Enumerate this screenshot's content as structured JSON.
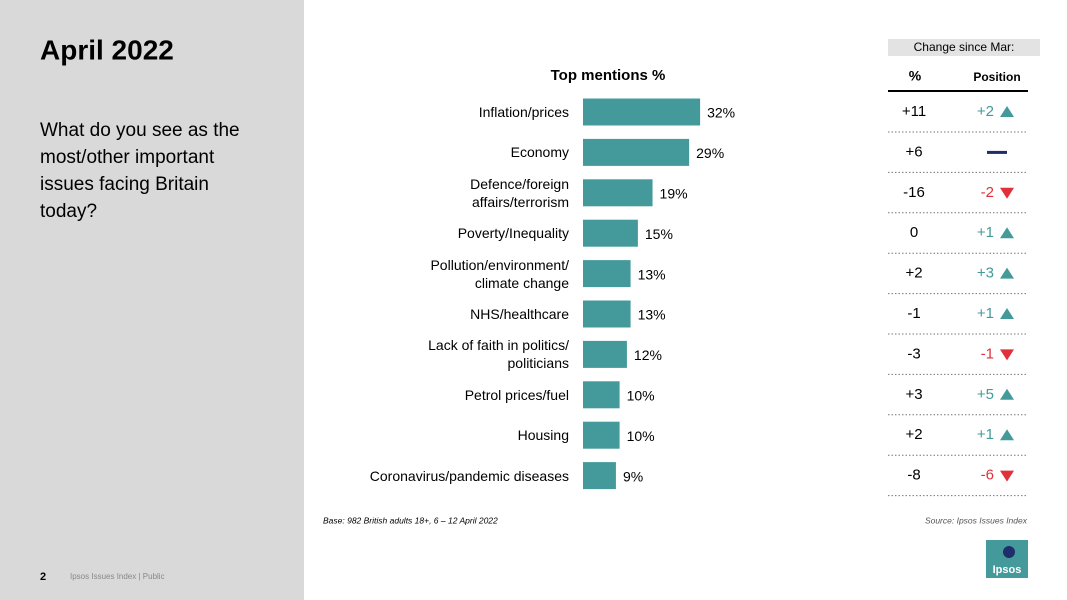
{
  "slide": {
    "title": "April 2022",
    "question": "What do you see as the most/other important issues facing Britain today?",
    "page_number": "2",
    "footer": "Ipsos Issues Index | Public",
    "base": "Base: 982 British adults 18+, 6 – 12 April 2022",
    "source": "Source: Ipsos Issues Index",
    "logo": "Ipsos"
  },
  "chart_data": {
    "type": "bar",
    "orientation": "horizontal",
    "title": "Top mentions %",
    "categories": [
      "Inflation/prices",
      "Economy",
      "Defence/foreign\naffairs/terrorism",
      "Poverty/Inequality",
      "Pollution/environment/\nclimate change",
      "NHS/healthcare",
      "Lack of faith in politics/\npoliticians",
      "Petrol prices/fuel",
      "Housing",
      "Coronavirus/pandemic diseases"
    ],
    "values": [
      32,
      29,
      19,
      15,
      13,
      13,
      12,
      10,
      10,
      9
    ],
    "value_labels": [
      "32%",
      "29%",
      "19%",
      "15%",
      "13%",
      "13%",
      "12%",
      "10%",
      "10%",
      "9%"
    ],
    "color": "#449a9b"
  },
  "change_table": {
    "title": "Change since Mar:",
    "columns": [
      "%",
      "Position"
    ],
    "rows": [
      [
        "+11",
        "+2"
      ],
      [
        "+6",
        ""
      ],
      [
        "-16",
        "-2"
      ],
      [
        "0",
        "+1"
      ],
      [
        "+2",
        "+3"
      ],
      [
        "-1",
        "+1"
      ],
      [
        "-3",
        "-1"
      ],
      [
        "+3",
        "+5"
      ],
      [
        "+2",
        "+1"
      ],
      [
        "-8",
        "-6"
      ]
    ],
    "up_color": "#449a9b",
    "down_color": "#e0303a",
    "flat_color": "#1f2d6b"
  }
}
